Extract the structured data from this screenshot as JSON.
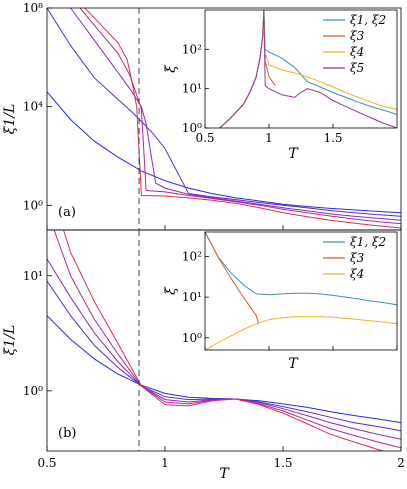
{
  "chart_data": [
    {
      "id": "a",
      "type": "line",
      "panel_label": "(a)",
      "ylabel": "ξ1/L",
      "xlabel": "",
      "xlim": [
        0.5,
        2.0
      ],
      "ylim": [
        0.1,
        100000000
      ],
      "yscale": "log",
      "yticks": [
        1,
        10000,
        100000000
      ],
      "ytick_labels": [
        "10⁰",
        "10⁴",
        "10⁸"
      ],
      "xticks": [
        0.5,
        1,
        1.5,
        2
      ],
      "xtick_labels": [
        "",
        "",
        "",
        ""
      ],
      "dashed_vline_x": 0.89,
      "series": [
        {
          "color": "#2a2ae0",
          "x": [
            0.5,
            0.6,
            0.7,
            0.8,
            0.9,
            1.0,
            1.1,
            1.2,
            1.3,
            1.4,
            1.5,
            1.6,
            1.7,
            1.8,
            1.9,
            2.0
          ],
          "y": [
            40000,
            3000,
            400,
            90,
            25,
            10,
            5,
            3,
            2,
            1.5,
            1.1,
            0.9,
            0.75,
            0.65,
            0.57,
            0.5
          ]
        },
        {
          "color": "#5a2ad0",
          "x": [
            0.5,
            0.6,
            0.7,
            0.8,
            0.86,
            0.9,
            0.95,
            1.0,
            1.1,
            1.2,
            1.3,
            1.4,
            1.5,
            1.6,
            1.7,
            1.8,
            1.9,
            2.0
          ],
          "y": [
            100000000,
            3000000,
            150000,
            20000,
            6000,
            2500,
            800,
            200,
            3,
            2.2,
            1.7,
            1.3,
            1.0,
            0.8,
            0.62,
            0.5,
            0.42,
            0.36
          ]
        },
        {
          "color": "#8a2ac0",
          "x": [
            0.6,
            0.7,
            0.8,
            0.86,
            0.9,
            0.92,
            0.96,
            1.0,
            1.1,
            1.2,
            1.3,
            1.4,
            1.5,
            1.6,
            1.7,
            1.8,
            1.9,
            2.0
          ],
          "y": [
            100000000,
            5000000,
            250000,
            40000,
            10000,
            2000,
            8,
            5,
            2.8,
            2.0,
            1.5,
            1.1,
            0.8,
            0.6,
            0.45,
            0.36,
            0.3,
            0.25
          ]
        },
        {
          "color": "#b02a90",
          "x": [
            0.64,
            0.7,
            0.8,
            0.85,
            0.88,
            0.9,
            0.92,
            1.0,
            1.1,
            1.2,
            1.3,
            1.4,
            1.5,
            1.6,
            1.7,
            1.8,
            1.9,
            2.0
          ],
          "y": [
            100000000,
            20000000,
            1500000,
            200000,
            30000,
            8000,
            4,
            3.5,
            2.5,
            1.9,
            1.4,
            1.0,
            0.7,
            0.5,
            0.37,
            0.28,
            0.22,
            0.18
          ]
        },
        {
          "color": "#e02a50",
          "x": [
            0.66,
            0.7,
            0.8,
            0.84,
            0.86,
            0.88,
            0.9,
            1.0,
            1.1,
            1.2,
            1.3,
            1.4,
            1.5,
            1.6,
            1.7,
            1.8,
            1.9,
            2.0
          ],
          "y": [
            100000000,
            40000000,
            4000000,
            800000,
            100000,
            10000,
            2.5,
            2.4,
            2.0,
            1.6,
            1.2,
            0.8,
            0.5,
            0.35,
            0.25,
            0.19,
            0.15,
            0.12
          ]
        }
      ],
      "inset": {
        "xlabel": "T",
        "ylabel": "ξ",
        "xlim": [
          0.5,
          2.0
        ],
        "ylim": [
          1,
          1000
        ],
        "yscale": "log",
        "xticks": [
          0.5,
          1,
          1.5
        ],
        "xtick_labels": [
          "0.5",
          "1",
          "1.5"
        ],
        "yticks": [
          1,
          10,
          100
        ],
        "ytick_labels": [
          "10⁰",
          "10¹",
          "10²"
        ],
        "legend_position": "top-right",
        "series": [
          {
            "name": "ξ1, ξ2",
            "color": "#3d8fc5",
            "x": [
              0.5,
              0.6,
              0.7,
              0.8,
              0.85,
              0.9,
              0.93,
              0.95,
              0.96,
              0.97,
              1.0,
              1.1,
              1.2,
              1.3,
              1.4,
              1.5,
              1.6,
              1.7,
              1.8,
              1.9,
              2.0
            ],
            "y": [
              0.5,
              0.9,
              1.8,
              4,
              8,
              20,
              60,
              200,
              1000,
              100,
              85,
              60,
              35,
              15,
              11,
              8,
              6,
              4.5,
              3.5,
              2.8,
              2.2
            ]
          },
          {
            "name": "ξ3",
            "color": "#c86428",
            "x": [
              0.5,
              0.6,
              0.7,
              0.8,
              0.85,
              0.9,
              0.93,
              0.95,
              0.96,
              0.97,
              1.0,
              1.05
            ],
            "y": [
              0.5,
              0.9,
              1.8,
              4,
              8,
              20,
              60,
              200,
              1000,
              50,
              20,
              12
            ]
          },
          {
            "name": "ξ4",
            "color": "#e8b820",
            "x": [
              0.5,
              0.6,
              0.7,
              0.8,
              0.85,
              0.9,
              0.93,
              0.95,
              0.96,
              0.97,
              1.0,
              1.1,
              1.2,
              1.3,
              1.4,
              1.5,
              1.6,
              1.7,
              1.8,
              1.9,
              2.0
            ],
            "y": [
              0.5,
              0.9,
              1.8,
              4,
              8,
              20,
              60,
              200,
              1000,
              80,
              40,
              30,
              25,
              20,
              15,
              11,
              8,
              6,
              4.5,
              3.5,
              3
            ]
          },
          {
            "name": "ξ5",
            "color": "#8a3a9a",
            "x": [
              0.5,
              0.6,
              0.7,
              0.8,
              0.85,
              0.9,
              0.93,
              0.95,
              0.96,
              0.97,
              1.0,
              1.1,
              1.2,
              1.25,
              1.3,
              1.4,
              1.5,
              1.6,
              1.7,
              1.8,
              1.9,
              2.0
            ],
            "y": [
              0.5,
              0.9,
              1.8,
              4,
              8,
              20,
              60,
              200,
              1000,
              12,
              10,
              7,
              6,
              8,
              10,
              8,
              5,
              3.5,
              2.5,
              1.8,
              1.3,
              1.0
            ]
          }
        ]
      }
    },
    {
      "id": "b",
      "type": "line",
      "panel_label": "(b)",
      "ylabel": "ξ1/L",
      "xlabel": "T",
      "xlim": [
        0.5,
        2.0
      ],
      "ylim": [
        0.3,
        25
      ],
      "yscale": "log",
      "yticks": [
        1,
        10
      ],
      "ytick_labels": [
        "10⁰",
        "10¹"
      ],
      "xticks": [
        0.5,
        1,
        1.5,
        2
      ],
      "xtick_labels": [
        "0.5",
        "1",
        "1.5",
        "2"
      ],
      "dashed_vline_x": 0.89,
      "series": [
        {
          "color": "#2a2ae0",
          "x": [
            0.5,
            0.6,
            0.7,
            0.8,
            0.9,
            1.0,
            1.1,
            1.2,
            1.3,
            1.4,
            1.5,
            1.6,
            1.7,
            1.8,
            1.9,
            2.0
          ],
          "y": [
            4.5,
            2.8,
            1.9,
            1.4,
            1.12,
            0.95,
            0.88,
            0.86,
            0.85,
            0.82,
            0.77,
            0.72,
            0.66,
            0.61,
            0.57,
            0.53
          ]
        },
        {
          "color": "#5a2ad0",
          "x": [
            0.5,
            0.6,
            0.7,
            0.8,
            0.9,
            1.0,
            1.1,
            1.2,
            1.3,
            1.4,
            1.5,
            1.6,
            1.7,
            1.8,
            1.9,
            2.0
          ],
          "y": [
            9,
            4.5,
            2.5,
            1.6,
            1.1,
            0.89,
            0.84,
            0.85,
            0.85,
            0.8,
            0.73,
            0.66,
            0.59,
            0.53,
            0.49,
            0.45
          ]
        },
        {
          "color": "#8a2ac0",
          "x": [
            0.5,
            0.6,
            0.7,
            0.8,
            0.9,
            1.0,
            1.1,
            1.2,
            1.3,
            1.4,
            1.5,
            1.6,
            1.7,
            1.8,
            1.9,
            2.0
          ],
          "y": [
            14,
            6.5,
            3.2,
            1.8,
            1.1,
            0.84,
            0.8,
            0.84,
            0.85,
            0.79,
            0.7,
            0.61,
            0.53,
            0.47,
            0.42,
            0.38
          ]
        },
        {
          "color": "#b02a90",
          "x": [
            0.53,
            0.6,
            0.7,
            0.8,
            0.9,
            1.0,
            1.1,
            1.2,
            1.3,
            1.4,
            1.5,
            1.6,
            1.7,
            1.8,
            1.9,
            2.0
          ],
          "y": [
            25,
            10,
            4.2,
            2.1,
            1.1,
            0.8,
            0.77,
            0.83,
            0.85,
            0.77,
            0.67,
            0.56,
            0.47,
            0.41,
            0.36,
            0.32
          ]
        },
        {
          "color": "#e02a50",
          "x": [
            0.57,
            0.6,
            0.7,
            0.8,
            0.9,
            1.0,
            1.1,
            1.2,
            1.3,
            1.4,
            1.5,
            1.6,
            1.7,
            1.8,
            1.9,
            2.0
          ],
          "y": [
            25,
            16,
            6,
            2.6,
            1.1,
            0.76,
            0.74,
            0.82,
            0.85,
            0.76,
            0.64,
            0.52,
            0.42,
            0.36,
            0.31,
            0.27
          ]
        }
      ],
      "inset": {
        "xlabel": "T",
        "ylabel": "ξ",
        "xlim": [
          0.5,
          2.0
        ],
        "ylim": [
          0.5,
          400
        ],
        "yscale": "log",
        "xticks": [
          0.5,
          1,
          1.5,
          2
        ],
        "xtick_labels": [
          "",
          "",
          "",
          ""
        ],
        "yticks": [
          1,
          10,
          100
        ],
        "ytick_labels": [
          "10⁰",
          "10¹",
          "10²"
        ],
        "legend_position": "top-right",
        "series": [
          {
            "name": "ξ1, ξ2",
            "color": "#3d8fc5",
            "x": [
              0.5,
              0.6,
              0.7,
              0.8,
              0.9,
              1.0,
              1.1,
              1.2,
              1.3,
              1.4,
              1.5,
              1.6,
              1.7,
              1.8,
              1.9,
              2.0
            ],
            "y": [
              400,
              100,
              40,
              20,
              12,
              11.5,
              12,
              12.5,
              12.5,
              12,
              11,
              10,
              9,
              8,
              7.3,
              6.5
            ]
          },
          {
            "name": "ξ3",
            "color": "#c86428",
            "x": [
              0.5,
              0.6,
              0.7,
              0.8,
              0.9,
              0.92
            ],
            "y": [
              400,
              100,
              30,
              10,
              3.5,
              2.2
            ]
          },
          {
            "name": "ξ4",
            "color": "#e8b820",
            "x": [
              0.5,
              0.6,
              0.7,
              0.8,
              0.9,
              1.0,
              1.1,
              1.2,
              1.3,
              1.4,
              1.5,
              1.6,
              1.7,
              1.8,
              1.9,
              2.0
            ],
            "y": [
              0.5,
              0.75,
              1.1,
              1.6,
              2.2,
              2.8,
              3.1,
              3.3,
              3.3,
              3.3,
              3.2,
              3.0,
              2.8,
              2.6,
              2.4,
              2.2
            ]
          }
        ]
      }
    }
  ]
}
